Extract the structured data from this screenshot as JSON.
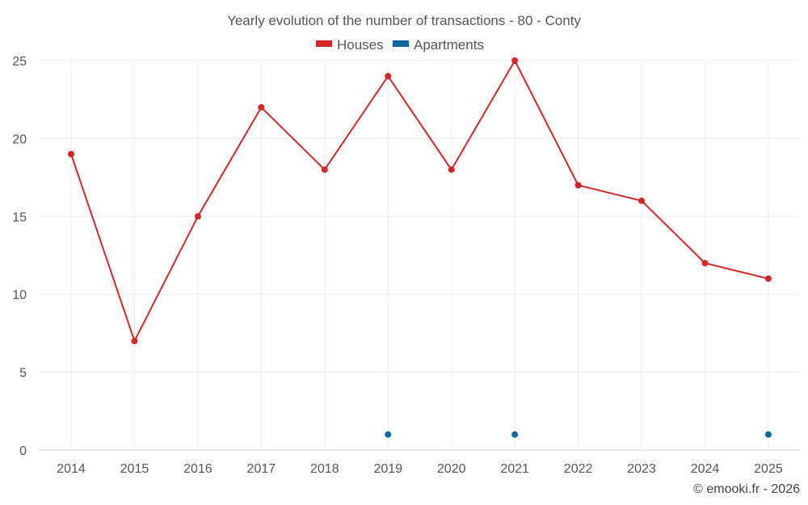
{
  "chart_data": {
    "type": "line",
    "title": "Yearly evolution of the number of transactions - 80 - Conty",
    "categories": [
      "2014",
      "2015",
      "2016",
      "2017",
      "2018",
      "2019",
      "2020",
      "2021",
      "2022",
      "2023",
      "2024",
      "2025"
    ],
    "ylim": [
      0,
      25
    ],
    "yticks": [
      0,
      5,
      10,
      15,
      20,
      25
    ],
    "grid": true,
    "legend_position": "top-center",
    "series": [
      {
        "name": "Houses",
        "color": "#d62728",
        "values": [
          19,
          7,
          15,
          22,
          18,
          24,
          18,
          25,
          17,
          16,
          12,
          11
        ]
      },
      {
        "name": "Apartments",
        "color": "#0b6aa2",
        "values": [
          null,
          null,
          null,
          null,
          null,
          1,
          null,
          1,
          null,
          null,
          null,
          1
        ]
      }
    ]
  },
  "credit": "© emooki.fr - 2026"
}
